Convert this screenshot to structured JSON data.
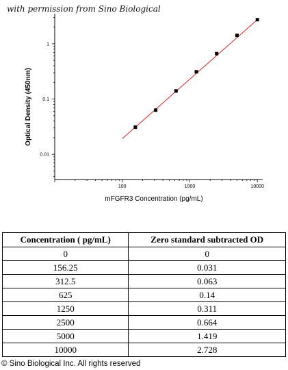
{
  "header": {
    "permission_text": "with permission from Sino Biological"
  },
  "chart_data": {
    "type": "scatter",
    "scale": "log-log",
    "xlabel": "mFGFR3 Concentration (pg/mL)",
    "ylabel": "Optical Density (450nm)",
    "x_ticks": [
      "100",
      "1000",
      "10000"
    ],
    "y_ticks": [
      "0.01",
      "0.1",
      "1"
    ],
    "xlim": [
      10,
      12000
    ],
    "ylim": [
      0.0035,
      3.5
    ],
    "points": {
      "x": [
        156.25,
        312.5,
        625,
        1250,
        2500,
        5000,
        10000
      ],
      "y": [
        0.031,
        0.063,
        0.14,
        0.311,
        0.664,
        1.419,
        2.728
      ]
    },
    "fit_line": {
      "x_start": 100,
      "x_end": 10000,
      "color": "#e02020"
    },
    "marker_color": "#000000",
    "grid": false
  },
  "table": {
    "headers": [
      "Concentration ( pg/mL)",
      "Zero standard subtracted OD"
    ],
    "rows": [
      [
        "0",
        "0"
      ],
      [
        "156.25",
        "0.031"
      ],
      [
        "312.5",
        "0.063"
      ],
      [
        "625",
        "0.14"
      ],
      [
        "1250",
        "0.311"
      ],
      [
        "2500",
        "0.664"
      ],
      [
        "5000",
        "1.419"
      ],
      [
        "10000",
        "2.728"
      ]
    ]
  },
  "footer": {
    "copyright": "© Sino Biological Inc. All rights reserved"
  }
}
